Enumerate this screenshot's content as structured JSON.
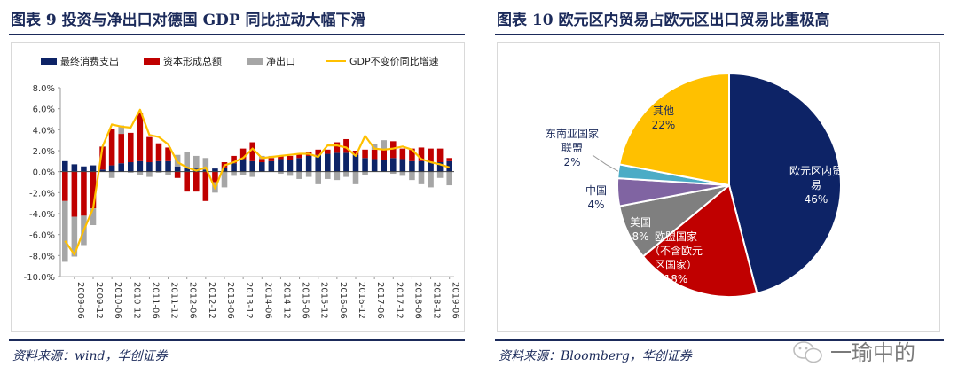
{
  "left": {
    "figure_title": "图表 9   投资与净出口对德国 GDP 同比拉动大幅下滑",
    "source": "资料来源：wind，华创证券"
  },
  "right": {
    "figure_title": "图表 10   欧元区内贸易占欧元区出口贸易比重极高",
    "source": "资料来源：Bloomberg，华创证券"
  },
  "watermark": {
    "text": "一瑜中的",
    "icon": "wechat-icon"
  },
  "colors": {
    "consumption": "#0d2366",
    "investment": "#c00000",
    "netexport": "#a6a6a6",
    "gdp": "#ffc000",
    "title": "#1b2a5a",
    "border": "#d9d9d9"
  },
  "chart_data": [
    {
      "type": "bar",
      "stacked": true,
      "legend": [
        "最终消费支出",
        "资本形成总额",
        "净出口",
        "GDP不变价同比增速"
      ],
      "categories": [
        "2009-03",
        "2009-06",
        "2009-09",
        "2009-12",
        "2010-03",
        "2010-06",
        "2010-09",
        "2010-12",
        "2011-03",
        "2011-06",
        "2011-09",
        "2011-12",
        "2012-03",
        "2012-06",
        "2012-09",
        "2012-12",
        "2013-03",
        "2013-06",
        "2013-09",
        "2013-12",
        "2014-03",
        "2014-06",
        "2014-09",
        "2014-12",
        "2015-03",
        "2015-06",
        "2015-09",
        "2015-12",
        "2016-03",
        "2016-06",
        "2016-09",
        "2016-12",
        "2017-03",
        "2017-06",
        "2017-09",
        "2017-12",
        "2018-03",
        "2018-06",
        "2018-09",
        "2018-12",
        "2019-03",
        "2019-06"
      ],
      "tick_labels": [
        "2009-06",
        "2009-12",
        "2010-06",
        "2010-12",
        "2011-06",
        "2011-12",
        "2012-06",
        "2012-12",
        "2013-06",
        "2013-12",
        "2014-06",
        "2014-12",
        "2015-06",
        "2015-12",
        "2016-06",
        "2016-12",
        "2017-06",
        "2017-12",
        "2018-06",
        "2018-12",
        "2019-06"
      ],
      "series": [
        {
          "name": "最终消费支出",
          "type": "bar",
          "values": [
            1.0,
            0.7,
            0.5,
            0.6,
            0.2,
            0.6,
            0.8,
            0.9,
            1.0,
            0.9,
            1.0,
            1.0,
            0.5,
            0.4,
            0.3,
            0.2,
            0.3,
            0.4,
            0.8,
            1.2,
            1.0,
            0.9,
            1.0,
            1.2,
            1.1,
            1.3,
            1.5,
            1.6,
            1.7,
            1.8,
            1.8,
            1.6,
            1.3,
            1.2,
            1.1,
            1.3,
            1.2,
            1.0,
            1.0,
            0.9,
            0.9,
            1.0
          ]
        },
        {
          "name": "资本形成总额",
          "type": "bar",
          "values": [
            -2.8,
            -4.3,
            -4.2,
            -3.5,
            2.2,
            3.5,
            2.8,
            2.8,
            4.6,
            2.4,
            1.7,
            1.3,
            -0.6,
            -1.9,
            -1.9,
            -2.8,
            -1.0,
            0.5,
            0.7,
            1.0,
            1.8,
            0.3,
            0.3,
            0.3,
            0.4,
            0.4,
            0.4,
            0.5,
            0.4,
            1.0,
            1.3,
            0.4,
            0.8,
            0.9,
            1.0,
            1.6,
            1.0,
            1.2,
            1.3,
            1.3,
            1.3,
            0.3
          ]
        },
        {
          "name": "净出口",
          "type": "bar",
          "values": [
            -5.8,
            -3.8,
            -2.8,
            -1.6,
            0.0,
            -0.6,
            0.8,
            -0.1,
            -0.3,
            -0.5,
            -0.1,
            -0.3,
            1.1,
            1.5,
            1.2,
            1.1,
            -1.0,
            -1.5,
            -0.4,
            -0.3,
            -0.5,
            0.3,
            0.2,
            -0.2,
            -0.4,
            -0.7,
            -0.5,
            -1.2,
            -0.7,
            -0.8,
            -0.5,
            -1.2,
            -0.3,
            0.5,
            0.9,
            -0.2,
            -0.4,
            -0.8,
            -1.2,
            -1.5,
            -0.6,
            -1.3
          ]
        },
        {
          "name": "GDP不变价同比增速",
          "type": "line",
          "values": [
            -6.6,
            -7.9,
            -5.6,
            -3.5,
            2.4,
            4.5,
            4.3,
            4.2,
            5.9,
            3.5,
            3.3,
            2.6,
            0.9,
            0.4,
            0.1,
            0.4,
            -1.6,
            0.6,
            0.9,
            1.3,
            2.2,
            1.3,
            1.4,
            1.5,
            1.6,
            1.7,
            1.7,
            1.4,
            2.5,
            2.5,
            2.3,
            1.5,
            3.4,
            2.2,
            2.1,
            2.2,
            2.4,
            2.1,
            1.2,
            0.9,
            0.7,
            0.4
          ]
        }
      ],
      "ylim": [
        -10,
        8
      ],
      "yticks": [
        "8.0%",
        "6.0%",
        "4.0%",
        "2.0%",
        "0.0%",
        "-2.0%",
        "-4.0%",
        "-6.0%",
        "-8.0%",
        "-10.0%"
      ],
      "title": "",
      "xlabel": "",
      "ylabel": "",
      "legend_position": "top"
    },
    {
      "type": "pie",
      "slices": [
        {
          "label": "欧元区内贸易",
          "value": 46,
          "pct": "46%",
          "color": "#0d2366"
        },
        {
          "label": "欧盟国家（不含欧元区国家）",
          "value": 18,
          "pct": "18%",
          "color": "#c00000"
        },
        {
          "label": "美国",
          "value": 8,
          "pct": "8%",
          "color": "#7f7f7f"
        },
        {
          "label": "中国",
          "value": 4,
          "pct": "4%",
          "color": "#8064a2"
        },
        {
          "label": "东南亚国家联盟",
          "value": 2,
          "pct": "2%",
          "color": "#4bacc6"
        },
        {
          "label": "其他",
          "value": 22,
          "pct": "22%",
          "color": "#ffc000"
        }
      ],
      "display_labels": [
        {
          "lines": [
            "欧元区内贸",
            "易",
            "46%"
          ],
          "color": "#ffffff"
        },
        {
          "lines": [
            "欧盟国家",
            "（不含欧元",
            "区国家）",
            "18%"
          ],
          "color": "#ffffff"
        },
        {
          "lines": [
            "美国",
            "8%"
          ],
          "color": "#ffffff"
        },
        {
          "lines": [
            "中国",
            "4%"
          ],
          "color": "#1b2a5a"
        },
        {
          "lines": [
            "东南亚国家",
            "联盟",
            "2%"
          ],
          "color": "#1b2a5a"
        },
        {
          "lines": [
            "其他",
            "22%"
          ],
          "color": "#1b2a5a"
        }
      ]
    }
  ]
}
